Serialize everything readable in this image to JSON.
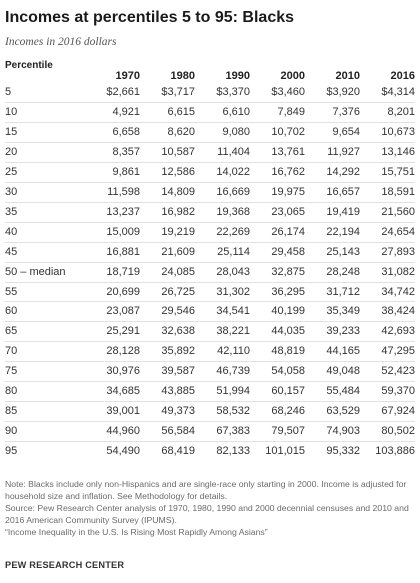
{
  "header": {
    "title": "Incomes at percentiles 5 to 95: Blacks",
    "subtitle": "Incomes in 2016 dollars"
  },
  "table": {
    "row_header": "Percentile",
    "columns": [
      "1970",
      "1980",
      "1990",
      "2000",
      "2010",
      "2016"
    ]
  },
  "chart_data": {
    "type": "table",
    "title": "Incomes at percentiles 5 to 95: Blacks",
    "subtitle": "Incomes in 2016 dollars",
    "row_header": "Percentile",
    "columns": [
      "1970",
      "1980",
      "1990",
      "2000",
      "2010",
      "2016"
    ],
    "rows": [
      {
        "label": "5",
        "values": [
          "$2,661",
          "$3,717",
          "$3,370",
          "$3,460",
          "$3,920",
          "$4,314"
        ]
      },
      {
        "label": "10",
        "values": [
          "4,921",
          "6,615",
          "6,610",
          "7,849",
          "7,376",
          "8,201"
        ]
      },
      {
        "label": "15",
        "values": [
          "6,658",
          "8,620",
          "9,080",
          "10,702",
          "9,654",
          "10,673"
        ]
      },
      {
        "label": "20",
        "values": [
          "8,357",
          "10,587",
          "11,404",
          "13,761",
          "11,927",
          "13,146"
        ]
      },
      {
        "label": "25",
        "values": [
          "9,861",
          "12,586",
          "14,022",
          "16,762",
          "14,292",
          "15,751"
        ]
      },
      {
        "label": "30",
        "values": [
          "11,598",
          "14,809",
          "16,669",
          "19,975",
          "16,657",
          "18,591"
        ]
      },
      {
        "label": "35",
        "values": [
          "13,237",
          "16,982",
          "19,368",
          "23,065",
          "19,419",
          "21,560"
        ]
      },
      {
        "label": "40",
        "values": [
          "15,009",
          "19,219",
          "22,269",
          "26,174",
          "22,194",
          "24,654"
        ]
      },
      {
        "label": "45",
        "values": [
          "16,881",
          "21,609",
          "25,114",
          "29,458",
          "25,143",
          "27,893"
        ]
      },
      {
        "label": "50 – median",
        "values": [
          "18,719",
          "24,085",
          "28,043",
          "32,875",
          "28,248",
          "31,082"
        ]
      },
      {
        "label": "55",
        "values": [
          "20,699",
          "26,725",
          "31,302",
          "36,295",
          "31,712",
          "34,742"
        ]
      },
      {
        "label": "60",
        "values": [
          "23,087",
          "29,546",
          "34,541",
          "40,199",
          "35,349",
          "38,424"
        ]
      },
      {
        "label": "65",
        "values": [
          "25,291",
          "32,638",
          "38,221",
          "44,035",
          "39,233",
          "42,693"
        ]
      },
      {
        "label": "70",
        "values": [
          "28,128",
          "35,892",
          "42,110",
          "48,819",
          "44,165",
          "47,295"
        ]
      },
      {
        "label": "75",
        "values": [
          "30,976",
          "39,587",
          "46,739",
          "54,058",
          "49,048",
          "52,423"
        ]
      },
      {
        "label": "80",
        "values": [
          "34,685",
          "43,885",
          "51,994",
          "60,157",
          "55,484",
          "59,370"
        ]
      },
      {
        "label": "85",
        "values": [
          "39,001",
          "49,373",
          "58,532",
          "68,246",
          "63,529",
          "67,924"
        ]
      },
      {
        "label": "90",
        "values": [
          "44,960",
          "56,584",
          "67,383",
          "79,507",
          "74,903",
          "80,502"
        ]
      },
      {
        "label": "95",
        "values": [
          "54,490",
          "68,419",
          "82,133",
          "101,015",
          "95,332",
          "103,886"
        ]
      }
    ]
  },
  "notes": {
    "note": "Note: Blacks include only non-Hispanics and are single-race only starting in 2000. Income is adjusted for household size and inflation. See Methodology for details.",
    "source": "Source: Pew Research Center analysis of 1970, 1980, 1990 and 2000 decennial censuses and 2010 and 2016 American Community Survey (IPUMS).",
    "report": "“Income Inequality in the U.S. Is Rising Most Rapidly Among Asians”",
    "credit": "PEW RESEARCH CENTER"
  }
}
